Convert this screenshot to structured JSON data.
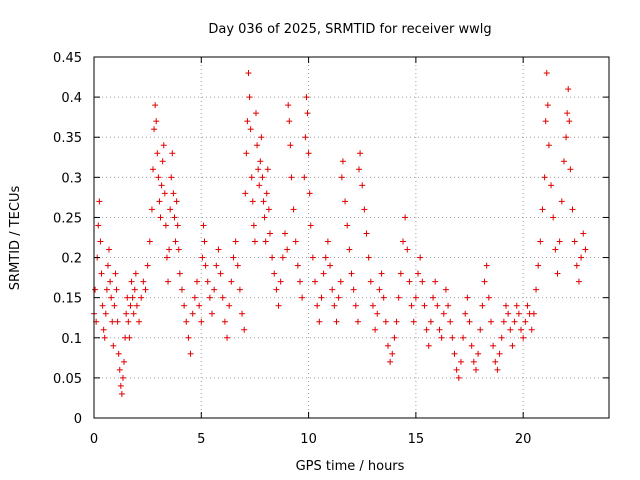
{
  "chart_data": {
    "type": "scatter",
    "title": "Day 036 of 2025, SRMTID for receiver wwlg",
    "xlabel": "GPS time / hours",
    "ylabel": "SRMTID / TECUs",
    "xlim": [
      0,
      24
    ],
    "ylim": [
      0,
      0.45
    ],
    "xticks": [
      0,
      5,
      10,
      15,
      20
    ],
    "xtick_labels": [
      "0",
      "5",
      "10",
      "15",
      "20"
    ],
    "yticks": [
      0,
      0.05,
      0.1,
      0.15,
      0.2,
      0.25,
      0.3,
      0.35,
      0.4,
      0.45
    ],
    "ytick_labels": [
      "0",
      "0.05",
      "0.1",
      "0.15",
      "0.2",
      "0.25",
      "0.3",
      "0.35",
      "0.4",
      "0.45"
    ],
    "grid": true,
    "marker": "+",
    "color": "#e00000",
    "series": [
      {
        "name": "SRMTID",
        "points": [
          [
            0.0,
            0.13
          ],
          [
            0.05,
            0.16
          ],
          [
            0.1,
            0.12
          ],
          [
            0.15,
            0.2
          ],
          [
            0.2,
            0.24
          ],
          [
            0.25,
            0.27
          ],
          [
            0.3,
            0.22
          ],
          [
            0.35,
            0.18
          ],
          [
            0.4,
            0.14
          ],
          [
            0.45,
            0.11
          ],
          [
            0.5,
            0.1
          ],
          [
            0.55,
            0.13
          ],
          [
            0.6,
            0.16
          ],
          [
            0.65,
            0.19
          ],
          [
            0.7,
            0.21
          ],
          [
            0.75,
            0.17
          ],
          [
            0.8,
            0.15
          ],
          [
            0.85,
            0.12
          ],
          [
            0.9,
            0.09
          ],
          [
            0.95,
            0.14
          ],
          [
            1.0,
            0.18
          ],
          [
            1.05,
            0.16
          ],
          [
            1.1,
            0.12
          ],
          [
            1.15,
            0.08
          ],
          [
            1.2,
            0.06
          ],
          [
            1.25,
            0.04
          ],
          [
            1.3,
            0.03
          ],
          [
            1.35,
            0.05
          ],
          [
            1.4,
            0.07
          ],
          [
            1.45,
            0.1
          ],
          [
            1.5,
            0.13
          ],
          [
            1.55,
            0.15
          ],
          [
            1.6,
            0.12
          ],
          [
            1.65,
            0.1
          ],
          [
            1.7,
            0.14
          ],
          [
            1.75,
            0.17
          ],
          [
            1.8,
            0.15
          ],
          [
            1.85,
            0.13
          ],
          [
            1.9,
            0.16
          ],
          [
            1.95,
            0.18
          ],
          [
            2.0,
            0.14
          ],
          [
            2.1,
            0.12
          ],
          [
            2.2,
            0.15
          ],
          [
            2.3,
            0.17
          ],
          [
            2.4,
            0.16
          ],
          [
            2.5,
            0.19
          ],
          [
            2.6,
            0.22
          ],
          [
            2.7,
            0.26
          ],
          [
            2.75,
            0.31
          ],
          [
            2.8,
            0.36
          ],
          [
            2.85,
            0.39
          ],
          [
            2.9,
            0.37
          ],
          [
            2.95,
            0.33
          ],
          [
            3.0,
            0.3
          ],
          [
            3.05,
            0.27
          ],
          [
            3.1,
            0.25
          ],
          [
            3.15,
            0.29
          ],
          [
            3.2,
            0.32
          ],
          [
            3.25,
            0.34
          ],
          [
            3.3,
            0.28
          ],
          [
            3.35,
            0.24
          ],
          [
            3.4,
            0.2
          ],
          [
            3.45,
            0.17
          ],
          [
            3.5,
            0.21
          ],
          [
            3.55,
            0.26
          ],
          [
            3.6,
            0.3
          ],
          [
            3.65,
            0.33
          ],
          [
            3.7,
            0.28
          ],
          [
            3.75,
            0.25
          ],
          [
            3.8,
            0.22
          ],
          [
            3.85,
            0.27
          ],
          [
            3.9,
            0.24
          ],
          [
            3.95,
            0.21
          ],
          [
            4.0,
            0.18
          ],
          [
            4.1,
            0.16
          ],
          [
            4.2,
            0.14
          ],
          [
            4.3,
            0.12
          ],
          [
            4.4,
            0.1
          ],
          [
            4.5,
            0.08
          ],
          [
            4.6,
            0.13
          ],
          [
            4.7,
            0.15
          ],
          [
            4.8,
            0.17
          ],
          [
            4.9,
            0.14
          ],
          [
            5.0,
            0.12
          ],
          [
            5.05,
            0.2
          ],
          [
            5.1,
            0.24
          ],
          [
            5.15,
            0.22
          ],
          [
            5.2,
            0.19
          ],
          [
            5.3,
            0.17
          ],
          [
            5.4,
            0.15
          ],
          [
            5.5,
            0.13
          ],
          [
            5.6,
            0.16
          ],
          [
            5.7,
            0.19
          ],
          [
            5.8,
            0.21
          ],
          [
            5.9,
            0.18
          ],
          [
            6.0,
            0.15
          ],
          [
            6.1,
            0.12
          ],
          [
            6.2,
            0.1
          ],
          [
            6.3,
            0.14
          ],
          [
            6.4,
            0.17
          ],
          [
            6.5,
            0.2
          ],
          [
            6.6,
            0.22
          ],
          [
            6.7,
            0.19
          ],
          [
            6.8,
            0.16
          ],
          [
            6.9,
            0.13
          ],
          [
            7.0,
            0.11
          ],
          [
            7.05,
            0.28
          ],
          [
            7.1,
            0.33
          ],
          [
            7.15,
            0.37
          ],
          [
            7.2,
            0.43
          ],
          [
            7.25,
            0.4
          ],
          [
            7.3,
            0.36
          ],
          [
            7.35,
            0.3
          ],
          [
            7.4,
            0.27
          ],
          [
            7.45,
            0.24
          ],
          [
            7.5,
            0.22
          ],
          [
            7.55,
            0.38
          ],
          [
            7.6,
            0.34
          ],
          [
            7.65,
            0.31
          ],
          [
            7.7,
            0.29
          ],
          [
            7.75,
            0.32
          ],
          [
            7.8,
            0.35
          ],
          [
            7.85,
            0.3
          ],
          [
            7.9,
            0.27
          ],
          [
            7.95,
            0.25
          ],
          [
            8.0,
            0.22
          ],
          [
            8.05,
            0.28
          ],
          [
            8.1,
            0.31
          ],
          [
            8.15,
            0.26
          ],
          [
            8.2,
            0.23
          ],
          [
            8.3,
            0.2
          ],
          [
            8.4,
            0.18
          ],
          [
            8.5,
            0.16
          ],
          [
            8.6,
            0.14
          ],
          [
            8.7,
            0.17
          ],
          [
            8.8,
            0.2
          ],
          [
            8.9,
            0.23
          ],
          [
            9.0,
            0.21
          ],
          [
            9.05,
            0.39
          ],
          [
            9.1,
            0.37
          ],
          [
            9.15,
            0.34
          ],
          [
            9.2,
            0.3
          ],
          [
            9.3,
            0.26
          ],
          [
            9.4,
            0.22
          ],
          [
            9.5,
            0.19
          ],
          [
            9.6,
            0.17
          ],
          [
            9.7,
            0.15
          ],
          [
            9.8,
            0.3
          ],
          [
            9.85,
            0.35
          ],
          [
            9.9,
            0.4
          ],
          [
            9.95,
            0.38
          ],
          [
            10.0,
            0.33
          ],
          [
            10.05,
            0.28
          ],
          [
            10.1,
            0.24
          ],
          [
            10.2,
            0.2
          ],
          [
            10.3,
            0.17
          ],
          [
            10.4,
            0.14
          ],
          [
            10.5,
            0.12
          ],
          [
            10.6,
            0.15
          ],
          [
            10.7,
            0.18
          ],
          [
            10.8,
            0.2
          ],
          [
            10.9,
            0.22
          ],
          [
            11.0,
            0.19
          ],
          [
            11.1,
            0.16
          ],
          [
            11.2,
            0.14
          ],
          [
            11.3,
            0.12
          ],
          [
            11.4,
            0.15
          ],
          [
            11.5,
            0.17
          ],
          [
            11.55,
            0.3
          ],
          [
            11.6,
            0.32
          ],
          [
            11.7,
            0.27
          ],
          [
            11.8,
            0.24
          ],
          [
            11.9,
            0.21
          ],
          [
            12.0,
            0.18
          ],
          [
            12.1,
            0.16
          ],
          [
            12.2,
            0.14
          ],
          [
            12.3,
            0.12
          ],
          [
            12.35,
            0.31
          ],
          [
            12.4,
            0.33
          ],
          [
            12.5,
            0.29
          ],
          [
            12.6,
            0.26
          ],
          [
            12.7,
            0.23
          ],
          [
            12.8,
            0.2
          ],
          [
            12.9,
            0.17
          ],
          [
            13.0,
            0.14
          ],
          [
            13.1,
            0.11
          ],
          [
            13.2,
            0.13
          ],
          [
            13.3,
            0.16
          ],
          [
            13.4,
            0.18
          ],
          [
            13.5,
            0.15
          ],
          [
            13.6,
            0.12
          ],
          [
            13.7,
            0.09
          ],
          [
            13.8,
            0.07
          ],
          [
            13.9,
            0.08
          ],
          [
            14.0,
            0.1
          ],
          [
            14.1,
            0.12
          ],
          [
            14.2,
            0.15
          ],
          [
            14.3,
            0.18
          ],
          [
            14.4,
            0.22
          ],
          [
            14.5,
            0.25
          ],
          [
            14.6,
            0.21
          ],
          [
            14.7,
            0.17
          ],
          [
            14.8,
            0.14
          ],
          [
            14.9,
            0.12
          ],
          [
            15.0,
            0.15
          ],
          [
            15.1,
            0.18
          ],
          [
            15.2,
            0.2
          ],
          [
            15.3,
            0.17
          ],
          [
            15.4,
            0.14
          ],
          [
            15.5,
            0.11
          ],
          [
            15.6,
            0.09
          ],
          [
            15.7,
            0.12
          ],
          [
            15.8,
            0.15
          ],
          [
            15.9,
            0.17
          ],
          [
            16.0,
            0.14
          ],
          [
            16.1,
            0.11
          ],
          [
            16.2,
            0.1
          ],
          [
            16.3,
            0.13
          ],
          [
            16.4,
            0.16
          ],
          [
            16.5,
            0.14
          ],
          [
            16.6,
            0.12
          ],
          [
            16.7,
            0.1
          ],
          [
            16.8,
            0.08
          ],
          [
            16.9,
            0.06
          ],
          [
            17.0,
            0.05
          ],
          [
            17.1,
            0.07
          ],
          [
            17.2,
            0.1
          ],
          [
            17.3,
            0.13
          ],
          [
            17.4,
            0.15
          ],
          [
            17.5,
            0.12
          ],
          [
            17.6,
            0.09
          ],
          [
            17.7,
            0.07
          ],
          [
            17.8,
            0.06
          ],
          [
            17.9,
            0.08
          ],
          [
            18.0,
            0.11
          ],
          [
            18.1,
            0.14
          ],
          [
            18.2,
            0.17
          ],
          [
            18.3,
            0.19
          ],
          [
            18.4,
            0.15
          ],
          [
            18.5,
            0.12
          ],
          [
            18.6,
            0.09
          ],
          [
            18.7,
            0.07
          ],
          [
            18.8,
            0.06
          ],
          [
            18.9,
            0.08
          ],
          [
            19.0,
            0.1
          ],
          [
            19.1,
            0.12
          ],
          [
            19.2,
            0.14
          ],
          [
            19.3,
            0.13
          ],
          [
            19.4,
            0.11
          ],
          [
            19.5,
            0.09
          ],
          [
            19.6,
            0.12
          ],
          [
            19.7,
            0.14
          ],
          [
            19.8,
            0.13
          ],
          [
            19.9,
            0.11
          ],
          [
            20.0,
            0.1
          ],
          [
            20.1,
            0.12
          ],
          [
            20.2,
            0.14
          ],
          [
            20.3,
            0.13
          ],
          [
            20.4,
            0.11
          ],
          [
            20.5,
            0.13
          ],
          [
            20.6,
            0.16
          ],
          [
            20.7,
            0.19
          ],
          [
            20.8,
            0.22
          ],
          [
            20.9,
            0.26
          ],
          [
            21.0,
            0.3
          ],
          [
            21.05,
            0.37
          ],
          [
            21.1,
            0.43
          ],
          [
            21.15,
            0.39
          ],
          [
            21.2,
            0.34
          ],
          [
            21.3,
            0.29
          ],
          [
            21.4,
            0.25
          ],
          [
            21.5,
            0.21
          ],
          [
            21.6,
            0.18
          ],
          [
            21.7,
            0.22
          ],
          [
            21.8,
            0.27
          ],
          [
            21.9,
            0.32
          ],
          [
            22.0,
            0.35
          ],
          [
            22.05,
            0.38
          ],
          [
            22.1,
            0.41
          ],
          [
            22.15,
            0.37
          ],
          [
            22.2,
            0.31
          ],
          [
            22.3,
            0.26
          ],
          [
            22.4,
            0.22
          ],
          [
            22.5,
            0.19
          ],
          [
            22.6,
            0.17
          ],
          [
            22.7,
            0.2
          ],
          [
            22.8,
            0.23
          ],
          [
            22.9,
            0.21
          ]
        ]
      }
    ]
  }
}
